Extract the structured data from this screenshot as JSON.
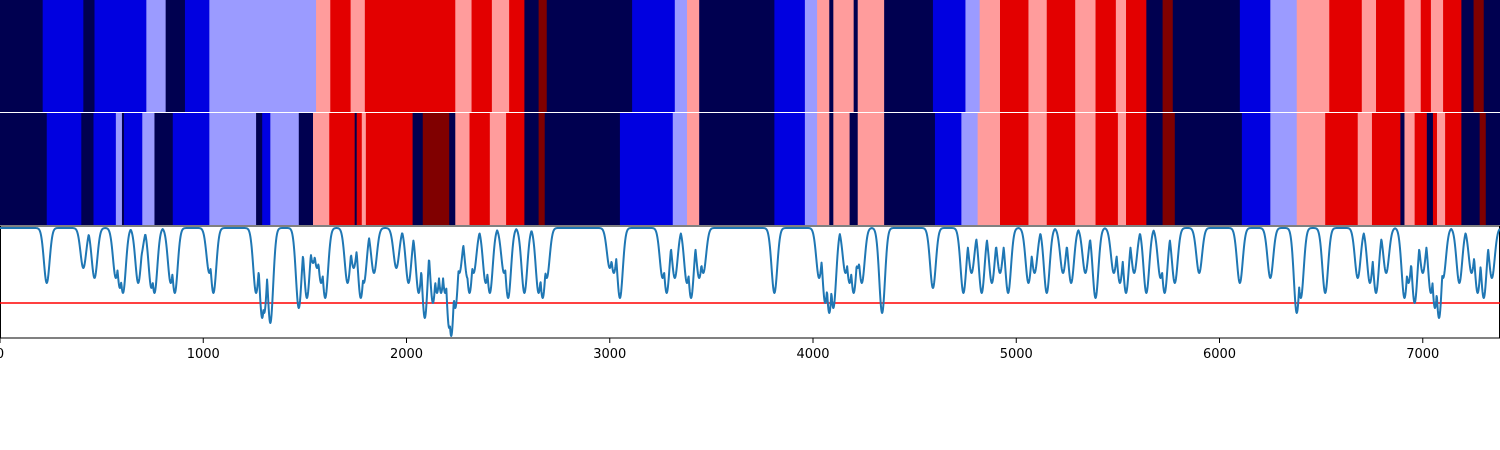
{
  "chart_data": {
    "type": "heatmap",
    "x_range": [
      0,
      7380
    ],
    "x_ticks": [
      "0",
      "1000",
      "2000",
      "3000",
      "4000",
      "5000",
      "6000",
      "7000"
    ],
    "x_tick_values": [
      0,
      1000,
      2000,
      3000,
      4000,
      5000,
      6000,
      7000
    ],
    "palette": {
      "0": "#000050",
      "1": "#0000e0",
      "2": "#9b9bff",
      "3": "#ff9c9c",
      "4": "#e30000",
      "5": "#800000"
    },
    "tracks": [
      {
        "segments": [
          [
            0,
            210,
            0
          ],
          [
            210,
            410,
            1
          ],
          [
            410,
            465,
            0
          ],
          [
            465,
            720,
            1
          ],
          [
            720,
            815,
            2
          ],
          [
            815,
            910,
            0
          ],
          [
            910,
            1030,
            1
          ],
          [
            1030,
            1555,
            2
          ],
          [
            1555,
            1625,
            3
          ],
          [
            1625,
            1725,
            4
          ],
          [
            1725,
            1795,
            3
          ],
          [
            1795,
            2240,
            4
          ],
          [
            2240,
            2320,
            3
          ],
          [
            2320,
            2420,
            4
          ],
          [
            2420,
            2505,
            3
          ],
          [
            2505,
            2580,
            4
          ],
          [
            2580,
            2650,
            0
          ],
          [
            2650,
            2690,
            5
          ],
          [
            2690,
            3110,
            0
          ],
          [
            3110,
            3320,
            1
          ],
          [
            3320,
            3380,
            2
          ],
          [
            3380,
            3440,
            3
          ],
          [
            3440,
            3810,
            0
          ],
          [
            3810,
            3960,
            1
          ],
          [
            3960,
            4020,
            2
          ],
          [
            4020,
            4080,
            3
          ],
          [
            4080,
            4100,
            0
          ],
          [
            4100,
            4200,
            3
          ],
          [
            4200,
            4220,
            0
          ],
          [
            4220,
            4350,
            3
          ],
          [
            4350,
            4590,
            0
          ],
          [
            4590,
            4750,
            1
          ],
          [
            4750,
            4820,
            2
          ],
          [
            4820,
            4920,
            3
          ],
          [
            4920,
            5060,
            4
          ],
          [
            5060,
            5150,
            3
          ],
          [
            5150,
            5290,
            4
          ],
          [
            5290,
            5390,
            3
          ],
          [
            5390,
            5490,
            4
          ],
          [
            5490,
            5540,
            3
          ],
          [
            5540,
            5640,
            4
          ],
          [
            5640,
            5720,
            0
          ],
          [
            5720,
            5770,
            5
          ],
          [
            5770,
            6100,
            0
          ],
          [
            6100,
            6250,
            1
          ],
          [
            6250,
            6380,
            2
          ],
          [
            6380,
            6540,
            3
          ],
          [
            6540,
            6700,
            4
          ],
          [
            6700,
            6770,
            3
          ],
          [
            6770,
            6910,
            4
          ],
          [
            6910,
            6990,
            3
          ],
          [
            6990,
            7040,
            4
          ],
          [
            7040,
            7100,
            3
          ],
          [
            7100,
            7190,
            4
          ],
          [
            7190,
            7250,
            0
          ],
          [
            7250,
            7300,
            5
          ],
          [
            7300,
            7380,
            0
          ]
        ]
      },
      {
        "segments": [
          [
            0,
            230,
            0
          ],
          [
            230,
            400,
            1
          ],
          [
            400,
            460,
            0
          ],
          [
            460,
            570,
            1
          ],
          [
            570,
            600,
            2
          ],
          [
            600,
            610,
            0
          ],
          [
            610,
            700,
            1
          ],
          [
            700,
            760,
            2
          ],
          [
            760,
            850,
            0
          ],
          [
            850,
            1030,
            1
          ],
          [
            1030,
            1260,
            2
          ],
          [
            1260,
            1290,
            0
          ],
          [
            1290,
            1330,
            1
          ],
          [
            1330,
            1470,
            2
          ],
          [
            1470,
            1540,
            0
          ],
          [
            1540,
            1620,
            3
          ],
          [
            1620,
            1745,
            4
          ],
          [
            1745,
            1755,
            0
          ],
          [
            1755,
            1780,
            4
          ],
          [
            1780,
            1800,
            3
          ],
          [
            1800,
            2030,
            4
          ],
          [
            2030,
            2080,
            0
          ],
          [
            2080,
            2210,
            5
          ],
          [
            2210,
            2240,
            0
          ],
          [
            2240,
            2310,
            3
          ],
          [
            2310,
            2410,
            4
          ],
          [
            2410,
            2490,
            3
          ],
          [
            2490,
            2580,
            4
          ],
          [
            2580,
            2650,
            0
          ],
          [
            2650,
            2680,
            5
          ],
          [
            2680,
            3050,
            0
          ],
          [
            3050,
            3310,
            1
          ],
          [
            3310,
            3380,
            2
          ],
          [
            3380,
            3440,
            3
          ],
          [
            3440,
            3810,
            0
          ],
          [
            3810,
            3960,
            1
          ],
          [
            3960,
            4020,
            2
          ],
          [
            4020,
            4080,
            3
          ],
          [
            4080,
            4100,
            0
          ],
          [
            4100,
            4180,
            3
          ],
          [
            4180,
            4220,
            0
          ],
          [
            4220,
            4350,
            3
          ],
          [
            4350,
            4600,
            0
          ],
          [
            4600,
            4730,
            1
          ],
          [
            4730,
            4810,
            2
          ],
          [
            4810,
            4920,
            3
          ],
          [
            4920,
            5060,
            4
          ],
          [
            5060,
            5150,
            3
          ],
          [
            5150,
            5290,
            4
          ],
          [
            5290,
            5390,
            3
          ],
          [
            5390,
            5500,
            4
          ],
          [
            5500,
            5540,
            3
          ],
          [
            5540,
            5640,
            4
          ],
          [
            5640,
            5720,
            0
          ],
          [
            5720,
            5780,
            5
          ],
          [
            5780,
            6110,
            0
          ],
          [
            6110,
            6250,
            1
          ],
          [
            6250,
            6380,
            2
          ],
          [
            6380,
            6520,
            3
          ],
          [
            6520,
            6680,
            4
          ],
          [
            6680,
            6750,
            3
          ],
          [
            6750,
            6890,
            4
          ],
          [
            6890,
            6910,
            0
          ],
          [
            6910,
            6960,
            3
          ],
          [
            6960,
            7020,
            4
          ],
          [
            7020,
            7050,
            0
          ],
          [
            7050,
            7070,
            4
          ],
          [
            7070,
            7110,
            3
          ],
          [
            7110,
            7190,
            4
          ],
          [
            7190,
            7280,
            0
          ],
          [
            7280,
            7310,
            5
          ],
          [
            7310,
            7380,
            0
          ]
        ]
      }
    ],
    "line": {
      "color": "#1f77b4",
      "baseline": 1.0,
      "ylim": [
        -0.1,
        1.02
      ],
      "threshold": 0.25,
      "threshold_color": "#ff0000",
      "dips": [
        [
          230,
          0.45
        ],
        [
          410,
          0.6
        ],
        [
          465,
          0.5
        ],
        [
          570,
          0.5
        ],
        [
          590,
          0.4
        ],
        [
          605,
          0.35
        ],
        [
          680,
          0.45
        ],
        [
          690,
          0.7
        ],
        [
          745,
          0.4
        ],
        [
          760,
          0.35
        ],
        [
          840,
          0.45
        ],
        [
          860,
          0.35
        ],
        [
          1030,
          0.55
        ],
        [
          1050,
          0.35
        ],
        [
          1260,
          0.35
        ],
        [
          1290,
          0.1
        ],
        [
          1300,
          0.15
        ],
        [
          1330,
          0.05
        ],
        [
          1470,
          0.2
        ],
        [
          1510,
          0.3
        ],
        [
          1540,
          0.65
        ],
        [
          1560,
          0.6
        ],
        [
          1580,
          0.45
        ],
        [
          1600,
          0.3
        ],
        [
          1710,
          0.45
        ],
        [
          1740,
          0.6
        ],
        [
          1775,
          0.3
        ],
        [
          1790,
          0.45
        ],
        [
          1840,
          0.55
        ],
        [
          1950,
          0.6
        ],
        [
          2010,
          0.45
        ],
        [
          2060,
          0.35
        ],
        [
          2090,
          0.1
        ],
        [
          2130,
          0.25
        ],
        [
          2150,
          0.35
        ],
        [
          2170,
          0.35
        ],
        [
          2190,
          0.35
        ],
        [
          2210,
          0.0
        ],
        [
          2220,
          -0.08
        ],
        [
          2240,
          0.2
        ],
        [
          2260,
          0.55
        ],
        [
          2300,
          0.5
        ],
        [
          2310,
          0.35
        ],
        [
          2330,
          0.55
        ],
        [
          2390,
          0.45
        ],
        [
          2410,
          0.35
        ],
        [
          2480,
          0.55
        ],
        [
          2500,
          0.3
        ],
        [
          2580,
          0.35
        ],
        [
          2650,
          0.35
        ],
        [
          2670,
          0.3
        ],
        [
          2690,
          0.5
        ],
        [
          3000,
          0.6
        ],
        [
          3020,
          0.55
        ],
        [
          3050,
          0.3
        ],
        [
          3260,
          0.5
        ],
        [
          3280,
          0.35
        ],
        [
          3320,
          0.5
        ],
        [
          3380,
          0.45
        ],
        [
          3400,
          0.3
        ],
        [
          3440,
          0.5
        ],
        [
          3460,
          0.55
        ],
        [
          3810,
          0.35
        ],
        [
          4030,
          0.5
        ],
        [
          4060,
          0.25
        ],
        [
          4070,
          0.35
        ],
        [
          4080,
          0.15
        ],
        [
          4100,
          0.2
        ],
        [
          4160,
          0.55
        ],
        [
          4180,
          0.45
        ],
        [
          4200,
          0.35
        ],
        [
          4220,
          0.6
        ],
        [
          4240,
          0.45
        ],
        [
          4340,
          0.15
        ],
        [
          4590,
          0.4
        ],
        [
          4740,
          0.35
        ],
        [
          4780,
          0.55
        ],
        [
          4830,
          0.35
        ],
        [
          4880,
          0.45
        ],
        [
          4920,
          0.55
        ],
        [
          4960,
          0.35
        ],
        [
          5060,
          0.45
        ],
        [
          5090,
          0.55
        ],
        [
          5150,
          0.35
        ],
        [
          5230,
          0.55
        ],
        [
          5270,
          0.45
        ],
        [
          5340,
          0.55
        ],
        [
          5390,
          0.3
        ],
        [
          5480,
          0.55
        ],
        [
          5510,
          0.45
        ],
        [
          5540,
          0.35
        ],
        [
          5580,
          0.55
        ],
        [
          5640,
          0.35
        ],
        [
          5710,
          0.5
        ],
        [
          5730,
          0.35
        ],
        [
          5780,
          0.45
        ],
        [
          5900,
          0.55
        ],
        [
          6100,
          0.45
        ],
        [
          6250,
          0.5
        ],
        [
          6380,
          0.15
        ],
        [
          6400,
          0.3
        ],
        [
          6520,
          0.35
        ],
        [
          6680,
          0.5
        ],
        [
          6740,
          0.45
        ],
        [
          6770,
          0.35
        ],
        [
          6820,
          0.55
        ],
        [
          6910,
          0.3
        ],
        [
          6930,
          0.45
        ],
        [
          6960,
          0.25
        ],
        [
          7000,
          0.55
        ],
        [
          7040,
          0.35
        ],
        [
          7060,
          0.2
        ],
        [
          7080,
          0.1
        ],
        [
          7100,
          0.5
        ],
        [
          7180,
          0.45
        ],
        [
          7240,
          0.55
        ],
        [
          7270,
          0.35
        ],
        [
          7300,
          0.3
        ],
        [
          7340,
          0.5
        ]
      ]
    }
  }
}
